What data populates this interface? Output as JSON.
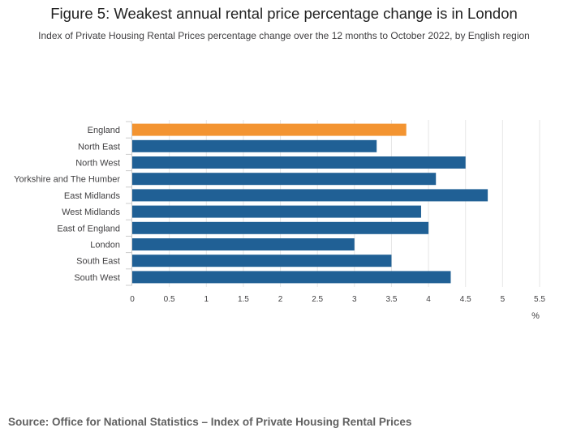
{
  "header": {
    "title": "Figure 5: Weakest annual rental price percentage change is in London",
    "subtitle": "Index of Private Housing Rental Prices percentage change over the 12 months to October 2022, by English region"
  },
  "footer": {
    "source": "Source: Office for National Statistics – Index of Private Housing Rental Prices"
  },
  "colors": {
    "highlight": "#f39431",
    "bar": "#206095",
    "grid": "#e6e6e6",
    "axis": "#cccccc"
  },
  "chart_data": {
    "type": "bar",
    "orientation": "horizontal",
    "title": "Figure 5: Weakest annual rental price percentage change is in London",
    "xlabel": "%",
    "ylabel": "",
    "xlim": [
      0,
      5.5
    ],
    "xticks": [
      "0",
      "0.5",
      "1",
      "1.5",
      "2",
      "2.5",
      "3",
      "3.5",
      "4",
      "4.5",
      "5",
      "5.5"
    ],
    "grid": true,
    "categories": [
      "England",
      "North East",
      "North West",
      "Yorkshire and The Humber",
      "East Midlands",
      "West Midlands",
      "East of England",
      "London",
      "South East",
      "South West"
    ],
    "values": [
      3.7,
      3.3,
      4.5,
      4.1,
      4.8,
      3.9,
      4.0,
      3.0,
      3.5,
      4.3
    ],
    "highlight": "England"
  }
}
